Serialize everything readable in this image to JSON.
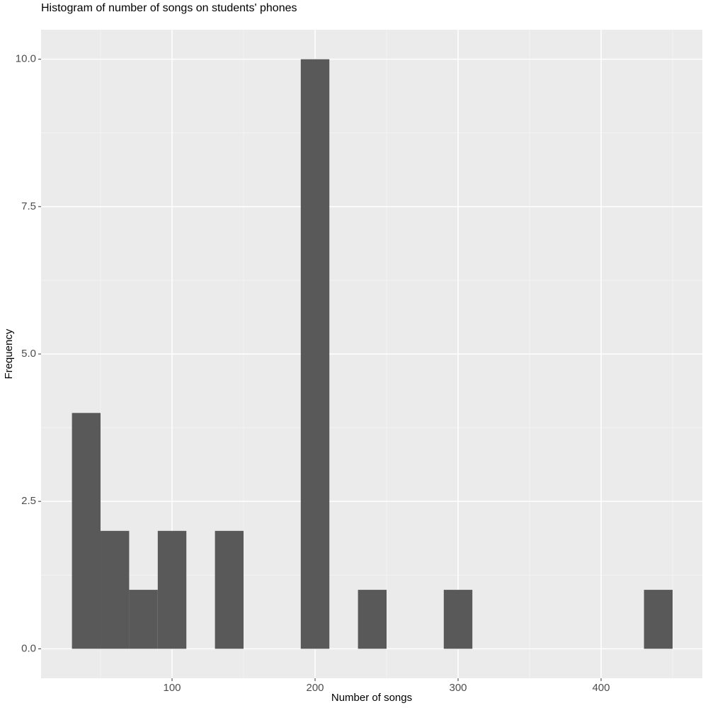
{
  "chart_data": {
    "type": "histogram",
    "title": "Histogram of number of songs on students' phones",
    "x_label": "Number of songs",
    "y_label": "Frequency",
    "bins": [
      30,
      50,
      70,
      90,
      110,
      130,
      150,
      170,
      190,
      210,
      230,
      250,
      270,
      290,
      310,
      330,
      350,
      370,
      390,
      410,
      430,
      450
    ],
    "values": [
      4,
      2,
      1,
      2,
      0,
      2,
      0,
      0,
      10,
      0,
      1,
      0,
      0,
      1,
      0,
      0,
      0,
      0,
      0,
      0,
      1
    ],
    "color": "#595959",
    "xlim": [
      8.4,
      470.8
    ],
    "ylim": [
      -0.5,
      10.5
    ],
    "xticks": [
      100,
      200,
      300,
      400
    ],
    "x_minor_ticks": [
      50,
      150,
      250,
      350,
      450
    ],
    "yticks": [
      {
        "value": 0,
        "label": "0.0"
      },
      {
        "value": 2.5,
        "label": "2.5"
      },
      {
        "value": 5,
        "label": "5.0"
      },
      {
        "value": 7.5,
        "label": "7.5"
      },
      {
        "value": 10,
        "label": "10.0"
      }
    ],
    "y_minor_ticks": [
      1.25,
      3.75,
      6.25,
      8.75
    ],
    "grid": true
  }
}
